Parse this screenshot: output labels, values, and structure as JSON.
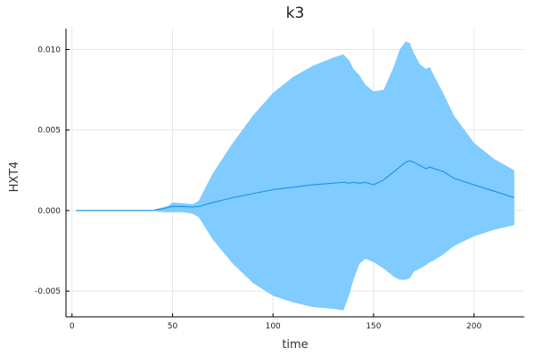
{
  "chart_data": {
    "type": "line",
    "title": "k3",
    "xlabel": "time",
    "ylabel": "HXT4",
    "xlim": [
      -3,
      225
    ],
    "ylim": [
      -0.0066,
      0.0113
    ],
    "xticks": [
      0,
      50,
      100,
      150,
      200
    ],
    "xtick_labels": [
      "0",
      "50",
      "100",
      "150",
      "200"
    ],
    "yticks": [
      -0.005,
      0.0,
      0.005,
      0.01
    ],
    "ytick_labels": [
      "-0.005",
      "0.000",
      "0.005",
      "0.010"
    ],
    "grid": true,
    "legend": "none",
    "colors": {
      "band": "#80CBFF",
      "line": "#1F97E8"
    },
    "series": [
      {
        "x": [
          2,
          40,
          42,
          45,
          48,
          50,
          55,
          60,
          63,
          70,
          80,
          90,
          100,
          110,
          120,
          130,
          135,
          138,
          140,
          143,
          146,
          150,
          155,
          160,
          163,
          166,
          168,
          170,
          173,
          176,
          178,
          180,
          185,
          190,
          200,
          210,
          220
        ],
        "y": [
          0,
          0,
          5e-05,
          0.0001,
          0.0002,
          0.00025,
          0.00025,
          0.00022,
          0.00025,
          0.0005,
          0.0008,
          0.00105,
          0.0013,
          0.00145,
          0.0016,
          0.0017,
          0.00175,
          0.0017,
          0.00175,
          0.0017,
          0.00175,
          0.0016,
          0.0019,
          0.0024,
          0.0027,
          0.003,
          0.0031,
          0.003,
          0.0028,
          0.0026,
          0.0027,
          0.0026,
          0.0024,
          0.002,
          0.0016,
          0.0012,
          0.0008
        ],
        "upper": [
          0,
          0,
          0.0001,
          0.0002,
          0.0003,
          0.0005,
          0.00045,
          0.0004,
          0.0006,
          0.0023,
          0.0042,
          0.0059,
          0.0073,
          0.0083,
          0.009,
          0.0095,
          0.0097,
          0.0093,
          0.0088,
          0.0084,
          0.0078,
          0.0074,
          0.0075,
          0.0089,
          0.01,
          0.0105,
          0.0104,
          0.0098,
          0.0091,
          0.0088,
          0.0089,
          0.0084,
          0.0072,
          0.0059,
          0.0042,
          0.0032,
          0.0025
        ],
        "lower": [
          0,
          0,
          -5e-05,
          -0.0001,
          -0.0001,
          -0.0001,
          -0.0001,
          -0.0002,
          -0.0004,
          -0.0018,
          -0.0033,
          -0.0045,
          -0.0053,
          -0.0057,
          -0.006,
          -0.0061,
          -0.0062,
          -0.0052,
          -0.0043,
          -0.0033,
          -0.003,
          -0.0032,
          -0.0036,
          -0.0041,
          -0.0043,
          -0.0043,
          -0.0042,
          -0.0038,
          -0.0036,
          -0.0034,
          -0.0032,
          -0.0031,
          -0.0027,
          -0.0022,
          -0.0016,
          -0.0012,
          -0.0009
        ]
      }
    ]
  }
}
